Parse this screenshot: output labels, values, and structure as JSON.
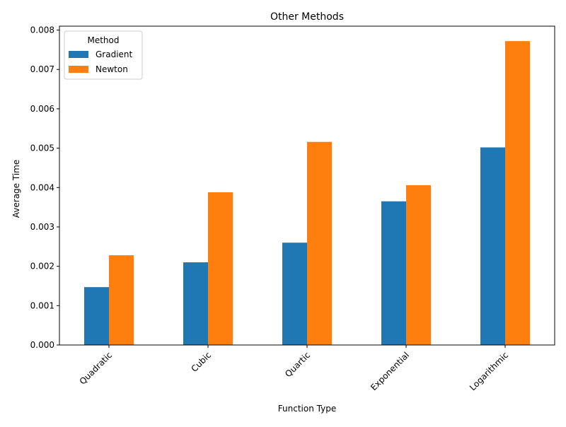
{
  "chart_data": {
    "type": "bar",
    "title": "Other Methods",
    "xlabel": "Function Type",
    "ylabel": "Average Time",
    "categories": [
      "Quadratic",
      "Cubic",
      "Quartic",
      "Exponential",
      "Logarithmic"
    ],
    "series": [
      {
        "name": "Gradient",
        "color": "#1f77b4",
        "values": [
          0.00147,
          0.0021,
          0.0026,
          0.00365,
          0.00502
        ]
      },
      {
        "name": "Newton",
        "color": "#ff7f0e",
        "values": [
          0.00228,
          0.00388,
          0.00516,
          0.00406,
          0.00772
        ]
      }
    ],
    "ylim": [
      0,
      0.0081
    ],
    "yticks": [
      "0.000",
      "0.001",
      "0.002",
      "0.003",
      "0.004",
      "0.005",
      "0.006",
      "0.007",
      "0.008"
    ],
    "xtick_rotation_deg": 45,
    "legend": {
      "title": "Method",
      "position": "top-left"
    },
    "grid": false
  }
}
